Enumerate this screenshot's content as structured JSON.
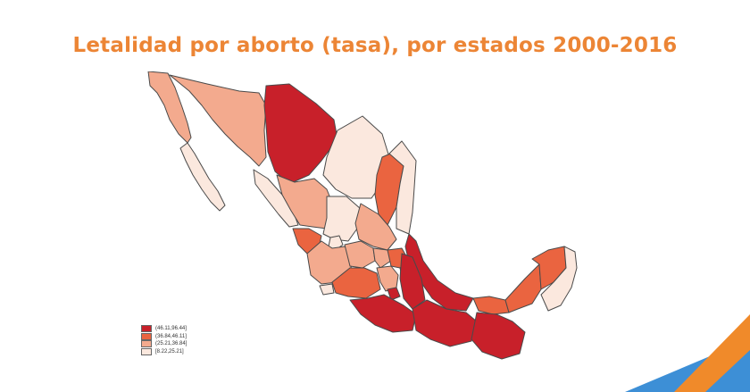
{
  "slide": {
    "title": "Letalidad por aborto (tasa), por estados 2000-2016"
  },
  "colors": {
    "title": "#ec8535",
    "border": "#4a4a4a",
    "dark_red": "#c8202a",
    "red_orange": "#ea6440",
    "salmon": "#f3aa8e",
    "light_pink": "#fbe8de",
    "deco_blue": "#3d8fd6",
    "deco_orange": "#f08a2a"
  },
  "legend": {
    "items": [
      {
        "label": "(46.11,96.44]",
        "color": "#c8202a"
      },
      {
        "label": "(36.84,46.11]",
        "color": "#ea6440"
      },
      {
        "label": "(25.21,36.84]",
        "color": "#f3aa8e"
      },
      {
        "label": "[8.22,25.21]",
        "color": "#fbe8de"
      }
    ]
  }
}
